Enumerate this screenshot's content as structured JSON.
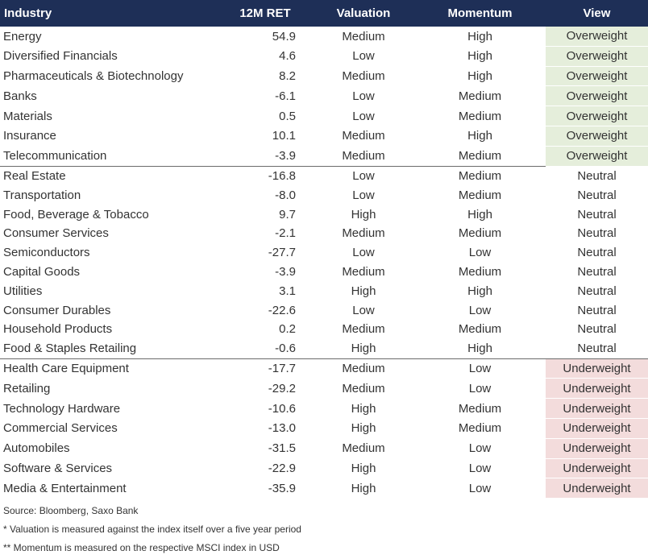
{
  "headers": {
    "industry": "Industry",
    "ret": "12M RET",
    "valuation": "Valuation",
    "momentum": "Momentum",
    "view": "View"
  },
  "rows": [
    {
      "industry": "Energy",
      "ret": "54.9",
      "valuation": "Medium",
      "momentum": "High",
      "view": "Overweight"
    },
    {
      "industry": "Diversified Financials",
      "ret": "4.6",
      "valuation": "Low",
      "momentum": "High",
      "view": "Overweight"
    },
    {
      "industry": "Pharmaceuticals & Biotechnology",
      "ret": "8.2",
      "valuation": "Medium",
      "momentum": "High",
      "view": "Overweight"
    },
    {
      "industry": "Banks",
      "ret": "-6.1",
      "valuation": "Low",
      "momentum": "Medium",
      "view": "Overweight"
    },
    {
      "industry": "Materials",
      "ret": "0.5",
      "valuation": "Low",
      "momentum": "Medium",
      "view": "Overweight"
    },
    {
      "industry": "Insurance",
      "ret": "10.1",
      "valuation": "Medium",
      "momentum": "High",
      "view": "Overweight"
    },
    {
      "industry": "Telecommunication",
      "ret": "-3.9",
      "valuation": "Medium",
      "momentum": "Medium",
      "view": "Overweight"
    },
    {
      "industry": "Real Estate",
      "ret": "-16.8",
      "valuation": "Low",
      "momentum": "Medium",
      "view": "Neutral"
    },
    {
      "industry": "Transportation",
      "ret": "-8.0",
      "valuation": "Low",
      "momentum": "Medium",
      "view": "Neutral"
    },
    {
      "industry": "Food, Beverage & Tobacco",
      "ret": "9.7",
      "valuation": "High",
      "momentum": "High",
      "view": "Neutral"
    },
    {
      "industry": "Consumer Services",
      "ret": "-2.1",
      "valuation": "Medium",
      "momentum": "Medium",
      "view": "Neutral"
    },
    {
      "industry": "Semiconductors",
      "ret": "-27.7",
      "valuation": "Low",
      "momentum": "Low",
      "view": "Neutral"
    },
    {
      "industry": "Capital Goods",
      "ret": "-3.9",
      "valuation": "Medium",
      "momentum": "Medium",
      "view": "Neutral"
    },
    {
      "industry": "Utilities",
      "ret": "3.1",
      "valuation": "High",
      "momentum": "High",
      "view": "Neutral"
    },
    {
      "industry": "Consumer Durables",
      "ret": "-22.6",
      "valuation": "Low",
      "momentum": "Low",
      "view": "Neutral"
    },
    {
      "industry": "Household Products",
      "ret": "0.2",
      "valuation": "Medium",
      "momentum": "Medium",
      "view": "Neutral"
    },
    {
      "industry": "Food & Staples Retailing",
      "ret": "-0.6",
      "valuation": "High",
      "momentum": "High",
      "view": "Neutral"
    },
    {
      "industry": "Health Care Equipment",
      "ret": "-17.7",
      "valuation": "Medium",
      "momentum": "Low",
      "view": "Underweight"
    },
    {
      "industry": "Retailing",
      "ret": "-29.2",
      "valuation": "Medium",
      "momentum": "Low",
      "view": "Underweight"
    },
    {
      "industry": "Technology Hardware",
      "ret": "-10.6",
      "valuation": "High",
      "momentum": "Medium",
      "view": "Underweight"
    },
    {
      "industry": "Commercial Services",
      "ret": "-13.0",
      "valuation": "High",
      "momentum": "Medium",
      "view": "Underweight"
    },
    {
      "industry": "Automobiles",
      "ret": "-31.5",
      "valuation": "Medium",
      "momentum": "Low",
      "view": "Underweight"
    },
    {
      "industry": "Software & Services",
      "ret": "-22.9",
      "valuation": "High",
      "momentum": "Low",
      "view": "Underweight"
    },
    {
      "industry": "Media & Entertainment",
      "ret": "-35.9",
      "valuation": "High",
      "momentum": "Low",
      "view": "Underweight"
    }
  ],
  "notes": {
    "source": "Source: Bloomberg, Saxo Bank",
    "valuation": "* Valuation is measured against the index itself over a five year period",
    "momentum": "** Momentum is measured on the respective MSCI index in USD"
  },
  "colors": {
    "header_bg": "#1e2f57",
    "overweight_bg": "#e5eedb",
    "underweight_bg": "#f3dcdc"
  }
}
